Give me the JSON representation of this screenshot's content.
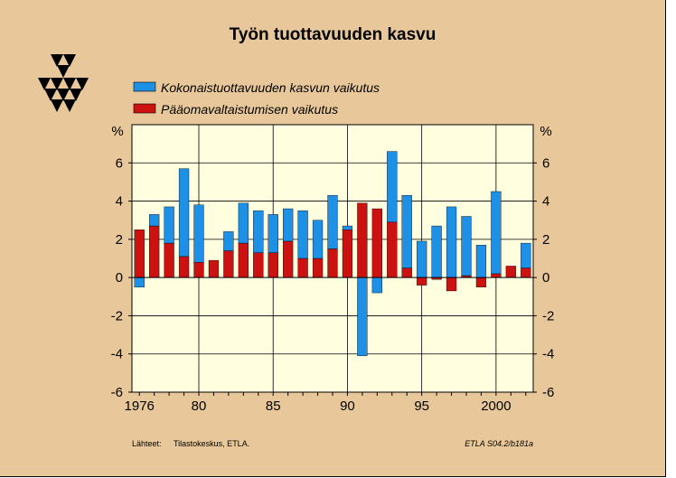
{
  "chart_data": {
    "type": "bar",
    "stacked_overlay": true,
    "title": "Työn tuottavuuden kasvu",
    "ylabel_left": "%",
    "ylabel_right": "%",
    "ylim": [
      -6,
      8
    ],
    "yticks": [
      -6,
      -4,
      -2,
      0,
      2,
      4,
      6
    ],
    "xlim": [
      1975.5,
      2002.5
    ],
    "xticks": [
      {
        "value": 1976,
        "label": "1976"
      },
      {
        "value": 1980,
        "label": "80"
      },
      {
        "value": 1985,
        "label": "85"
      },
      {
        "value": 1990,
        "label": "90"
      },
      {
        "value": 1995,
        "label": "95"
      },
      {
        "value": 2000,
        "label": "2000"
      }
    ],
    "grid": true,
    "legend_position": "top-left",
    "x": [
      1976,
      1977,
      1978,
      1979,
      1980,
      1981,
      1982,
      1983,
      1984,
      1985,
      1986,
      1987,
      1988,
      1989,
      1990,
      1991,
      1992,
      1993,
      1994,
      1995,
      1996,
      1997,
      1998,
      1999,
      2000,
      2001,
      2002
    ],
    "series": [
      {
        "name": "Kokonaistuottavuuden kasvun vaikutus",
        "color": "#1e90e6",
        "values": [
          -0.5,
          0.6,
          1.9,
          4.6,
          3.0,
          0.0,
          1.0,
          2.1,
          2.2,
          2.0,
          1.7,
          2.5,
          2.0,
          2.8,
          0.2,
          -4.1,
          -0.8,
          3.7,
          3.8,
          1.9,
          2.7,
          3.7,
          3.1,
          1.7,
          4.3,
          0.0,
          1.3
        ]
      },
      {
        "name": "Pääomavaltaistumisen vaikutus",
        "color": "#cc1111",
        "values": [
          2.5,
          2.7,
          1.8,
          1.1,
          0.8,
          0.9,
          1.4,
          1.8,
          1.3,
          1.3,
          1.9,
          1.0,
          1.0,
          1.5,
          2.5,
          3.9,
          3.6,
          2.9,
          0.5,
          -0.4,
          -0.1,
          -0.7,
          0.1,
          -0.5,
          0.2,
          0.6,
          0.5
        ]
      }
    ]
  },
  "footer": {
    "source_label": "Lähteet:",
    "source_text": "Tilastokeskus, ETLA.",
    "code": "ETLA S04.2/b181a"
  }
}
